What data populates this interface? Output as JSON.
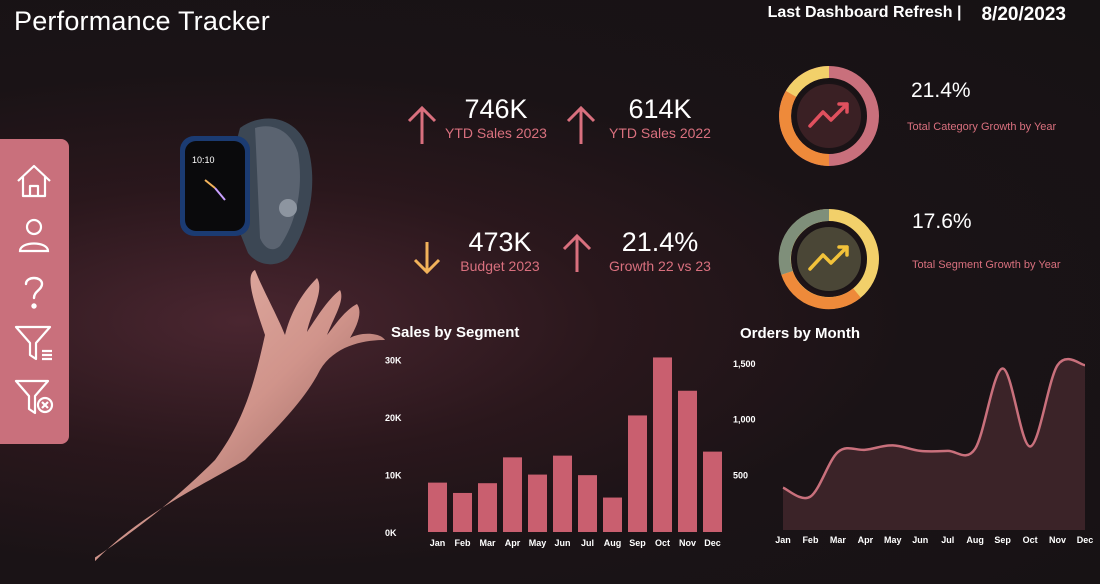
{
  "header": {
    "title": "Performance Tracker",
    "refresh_label": "Last Dashboard Refresh |",
    "refresh_date": "8/20/2023"
  },
  "sidebar": {
    "items": [
      {
        "icon": "home-icon"
      },
      {
        "icon": "user-icon"
      },
      {
        "icon": "help-icon"
      },
      {
        "icon": "filter-icon"
      },
      {
        "icon": "clear-filter-icon"
      }
    ]
  },
  "kpis": [
    {
      "value": "746K",
      "label": "YTD Sales 2023",
      "trend": "up"
    },
    {
      "value": "614K",
      "label": "YTD Sales 2022",
      "trend": "up"
    },
    {
      "value": "473K",
      "label": "Budget 2023",
      "trend": "down"
    },
    {
      "value": "21.4%",
      "label": "Growth 22 vs 23",
      "trend": "up"
    }
  ],
  "growth": [
    {
      "value": "21.4%",
      "label": "Total Category Growth by Year"
    },
    {
      "value": "17.6%",
      "label": "Total Segment Growth by Year"
    }
  ],
  "colors": {
    "accent": "#c9707c",
    "bar": "#c95f6f",
    "kpi_label": "#d9707e",
    "down_arrow": "#f2b25a",
    "line": "#c9707c"
  },
  "chart_data": [
    {
      "type": "bar",
      "title": "Sales by Segment",
      "categories": [
        "Jan",
        "Feb",
        "Mar",
        "Apr",
        "May",
        "Jun",
        "Jul",
        "Aug",
        "Sep",
        "Oct",
        "Nov",
        "Dec"
      ],
      "values": [
        8600,
        6800,
        8500,
        13000,
        10000,
        13300,
        9900,
        6000,
        20300,
        30400,
        24600,
        14000
      ],
      "yticks": [
        "0K",
        "10K",
        "20K",
        "30K"
      ],
      "ylim": [
        0,
        31000
      ]
    },
    {
      "type": "area",
      "title": "Orders by Month",
      "categories": [
        "Jan",
        "Feb",
        "Mar",
        "Apr",
        "May",
        "Jun",
        "Jul",
        "Aug",
        "Sep",
        "Oct",
        "Nov",
        "Dec"
      ],
      "values": [
        380,
        300,
        700,
        720,
        760,
        710,
        710,
        730,
        1450,
        750,
        1480,
        1480
      ],
      "yticks": [
        "500",
        "1,000",
        "1,500"
      ],
      "ylim": [
        0,
        1580
      ]
    }
  ]
}
